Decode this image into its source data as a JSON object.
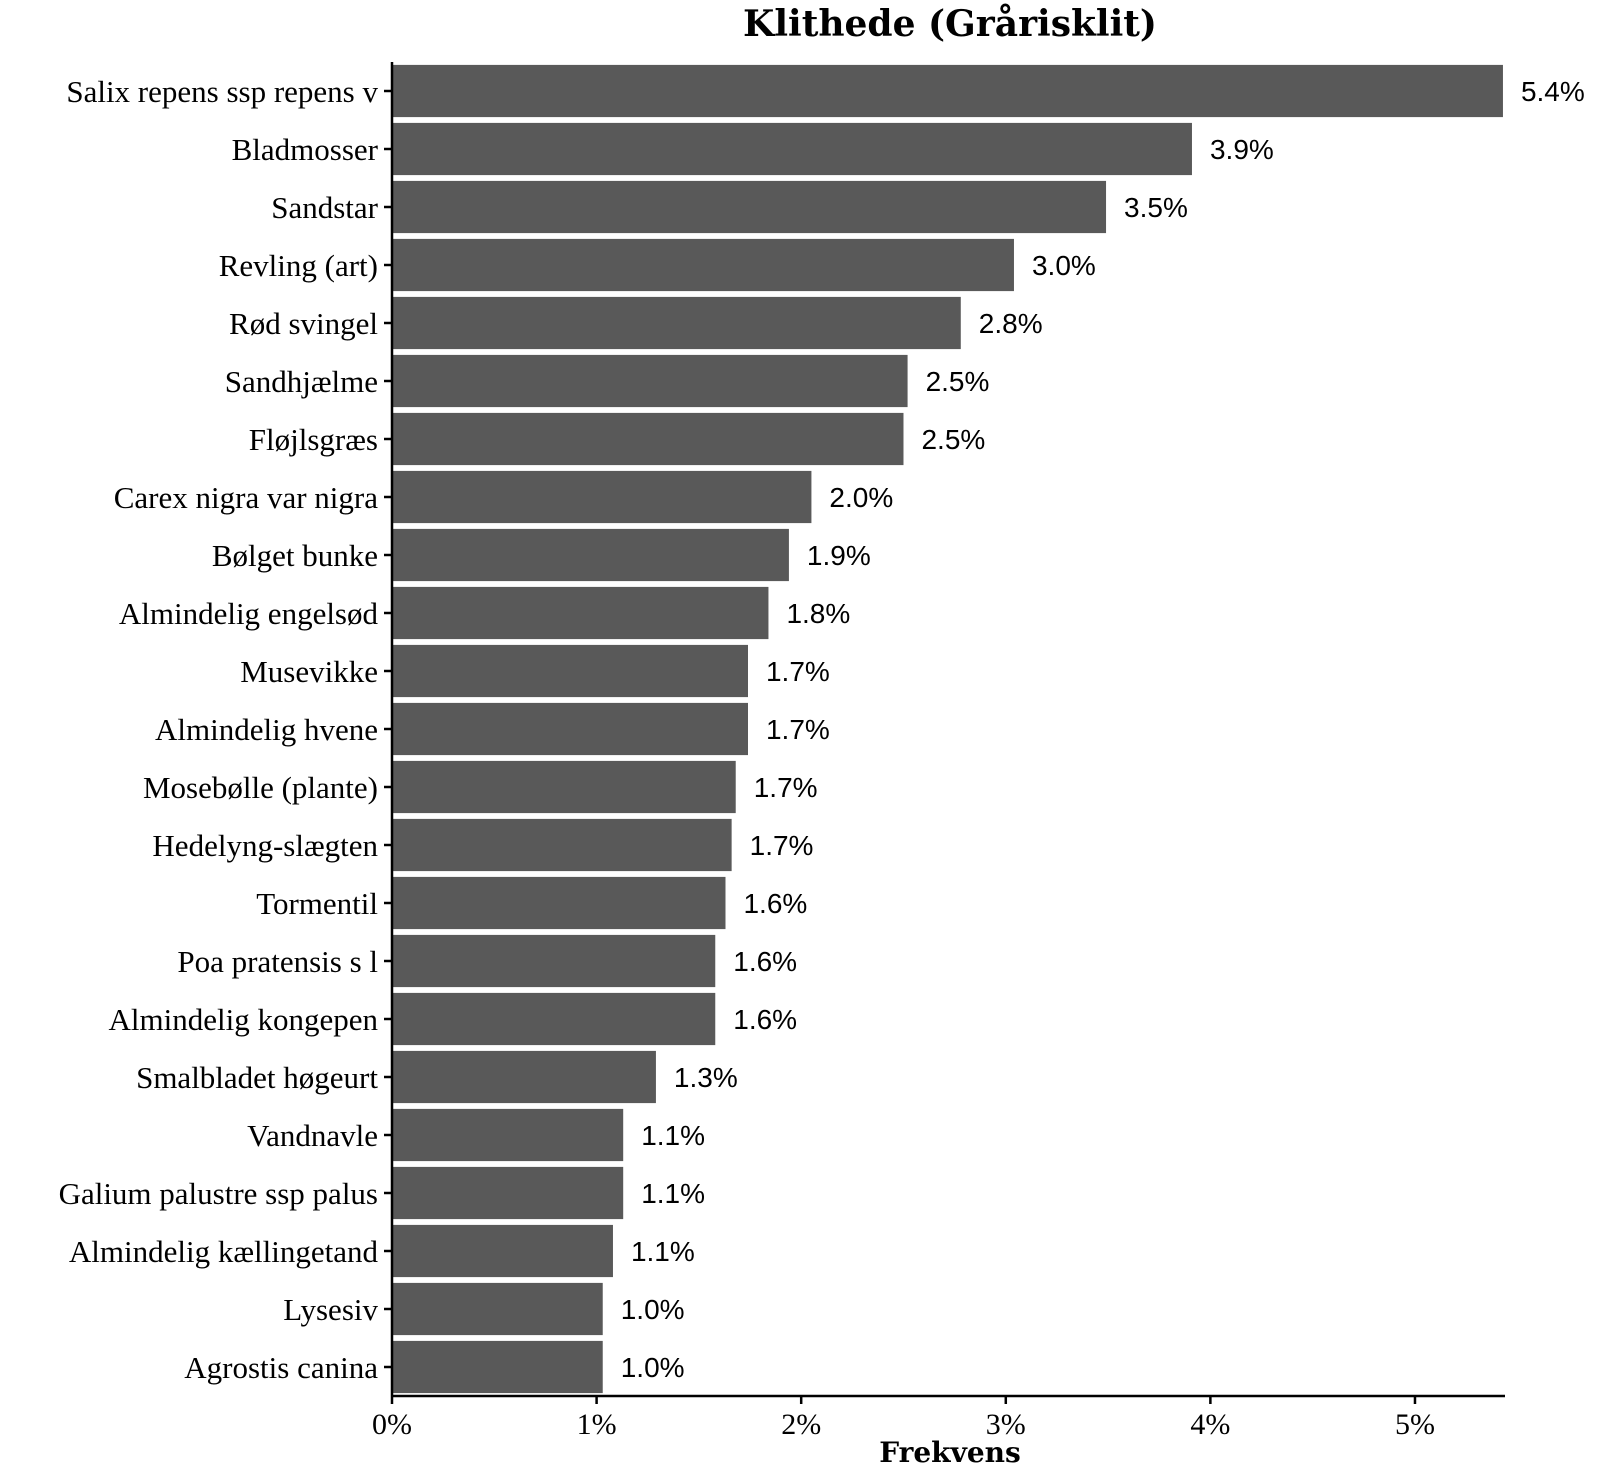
{
  "chart_data": {
    "type": "bar",
    "orientation": "horizontal",
    "title": "Klithede (Grårisklit)",
    "xlabel": "Frekvens",
    "ylabel": "",
    "xlim": [
      0,
      5.44
    ],
    "xticks": [
      0,
      1,
      2,
      3,
      4,
      5
    ],
    "xtick_labels": [
      "0%",
      "1%",
      "2%",
      "3%",
      "4%",
      "5%"
    ],
    "bar_color": "#595959",
    "grid": false,
    "categories": [
      "Salix repens ssp repens v",
      "Bladmosser",
      "Sandstar",
      "Revling (art)",
      "Rød svingel",
      "Sandhjælme",
      "Fløjlsgræs",
      "Carex nigra var nigra",
      "Bølget bunke",
      "Almindelig engelsød",
      "Musevikke",
      "Almindelig hvene",
      "Mosebølle (plante)",
      "Hedelyng-slægten",
      "Tormentil",
      "Poa pratensis s l",
      "Almindelig kongepen",
      "Smalbladet høgeurt",
      "Vandnavle",
      "Galium palustre ssp palus",
      "Almindelig kællingetand",
      "Lysesiv",
      "Agrostis canina"
    ],
    "values": [
      5.43,
      3.91,
      3.49,
      3.04,
      2.78,
      2.52,
      2.5,
      2.05,
      1.94,
      1.84,
      1.74,
      1.74,
      1.68,
      1.66,
      1.63,
      1.58,
      1.58,
      1.29,
      1.13,
      1.13,
      1.08,
      1.03,
      1.03
    ],
    "value_labels": [
      "5.4%",
      "3.9%",
      "3.5%",
      "3.0%",
      "2.8%",
      "2.5%",
      "2.5%",
      "2.0%",
      "1.9%",
      "1.8%",
      "1.7%",
      "1.7%",
      "1.7%",
      "1.7%",
      "1.6%",
      "1.6%",
      "1.6%",
      "1.3%",
      "1.1%",
      "1.1%",
      "1.1%",
      "1.0%",
      "1.0%"
    ]
  }
}
